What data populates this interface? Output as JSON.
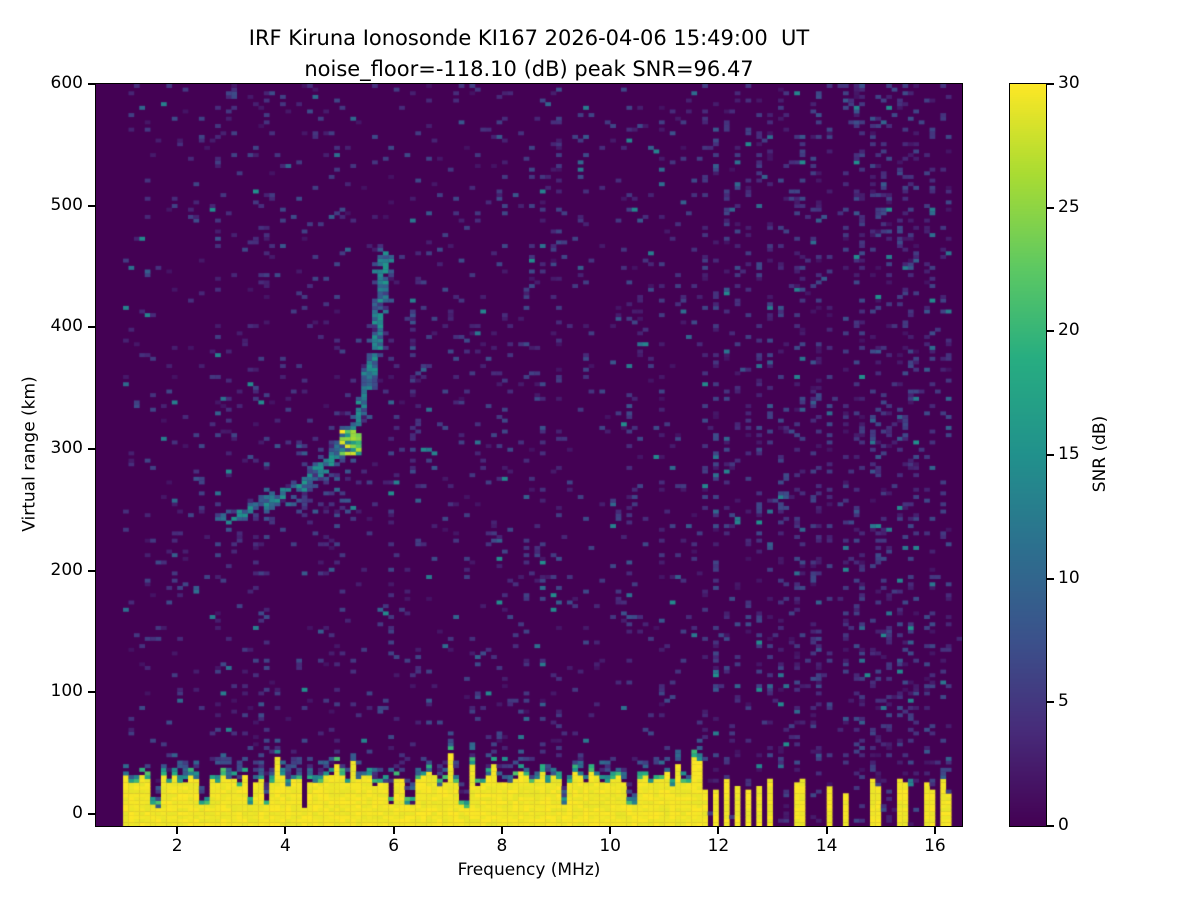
{
  "title": {
    "line1": "IRF Kiruna Ionosonde KI167 2026-04-06 15:49:00  UT",
    "line2": "noise_floor=-118.10 (dB) peak SNR=96.47"
  },
  "chart_data": {
    "type": "heatmap",
    "station": "IRF Kiruna Ionosonde KI167",
    "timestamp_ut": "2026-04-06 15:49:00",
    "noise_floor_db": -118.1,
    "peak_snr_db": 96.47,
    "xlabel": "Frequency (MHz)",
    "ylabel": "Virtual range (km)",
    "xlim": [
      0.5,
      16.5
    ],
    "ylim": [
      -10,
      600
    ],
    "xticks": [
      2,
      4,
      6,
      8,
      10,
      12,
      14,
      16
    ],
    "yticks": [
      0,
      100,
      200,
      300,
      400,
      500,
      600
    ],
    "freq_range_mhz": [
      1.0,
      16.45
    ],
    "colorbar": {
      "label": "SNR (dB)",
      "ticks": [
        0,
        5,
        10,
        15,
        20,
        25,
        30
      ],
      "vmin": 0,
      "vmax": 30
    },
    "colormap": "viridis",
    "colormap_stops": [
      [
        0,
        "#440154"
      ],
      [
        0.13,
        "#472c7a"
      ],
      [
        0.25,
        "#3b518b"
      ],
      [
        0.38,
        "#2c718e"
      ],
      [
        0.5,
        "#21918c"
      ],
      [
        0.63,
        "#27ad81"
      ],
      [
        0.75,
        "#5cc863"
      ],
      [
        0.88,
        "#aadc32"
      ],
      [
        1,
        "#fde725"
      ]
    ],
    "background_value_db": 0,
    "ground_clutter": {
      "value_db": 30,
      "mean_top_km": 32,
      "continuous_band_mhz": [
        1.0,
        11.65
      ],
      "notch_freqs_mhz": [
        1.6,
        2.5,
        3.35,
        3.65,
        4.35,
        5.95,
        6.3,
        7.3,
        9.15,
        10.4
      ],
      "isolated_stripe_freqs_mhz": [
        11.75,
        11.95,
        12.15,
        12.35,
        12.55,
        12.75,
        12.95,
        13.5,
        14.05,
        14.35,
        14.9,
        15.4,
        15.9,
        16.2
      ]
    },
    "echo_trace": {
      "points_mhz_km": [
        [
          2.85,
          243
        ],
        [
          3.2,
          248
        ],
        [
          3.6,
          255
        ],
        [
          4.0,
          263
        ],
        [
          4.4,
          273
        ],
        [
          4.7,
          284
        ],
        [
          4.95,
          296
        ],
        [
          5.15,
          308
        ],
        [
          5.3,
          322
        ],
        [
          5.45,
          342
        ],
        [
          5.55,
          362
        ],
        [
          5.65,
          386
        ],
        [
          5.72,
          408
        ],
        [
          5.78,
          430
        ],
        [
          5.83,
          452
        ],
        [
          5.85,
          458
        ]
      ],
      "bright_spot_mhz_km": [
        5.2,
        306
      ],
      "typical_snr_db": 14,
      "bright_spot_snr_db": 28,
      "faint_branch_mhz": 6.35,
      "faint_branch_km": [
        285,
        435
      ]
    },
    "interference_column_freqs_mhz": [
      13.2,
      13.8,
      14.6,
      15.1,
      15.6
    ],
    "hot_noise_columns_mhz": [
      3.62,
      6.35,
      8.0
    ],
    "background_speckle": {
      "density": 0.06,
      "max_db": 12
    }
  }
}
